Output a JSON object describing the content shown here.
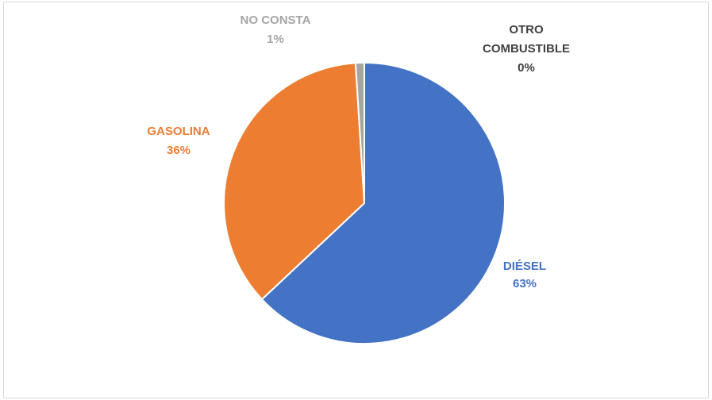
{
  "chart_data": {
    "type": "pie",
    "title": "",
    "slices": [
      {
        "label": "DIÉSEL",
        "value": 63,
        "value_label": "63%",
        "color": "#4472C4",
        "label_color": "#4472C4"
      },
      {
        "label": "GASOLINA",
        "value": 36,
        "value_label": "36%",
        "color": "#ED7D31",
        "label_color": "#ED7D31"
      },
      {
        "label": "NO CONSTA",
        "value": 1,
        "value_label": "1%",
        "color": "#A5A5A5",
        "label_color": "#A5A5A5"
      },
      {
        "label": "OTRO COMBUSTIBLE",
        "label_lines": [
          "OTRO",
          "COMBUSTIBLE"
        ],
        "value": 0,
        "value_label": "0%",
        "color": "#404040",
        "label_color": "#404040"
      }
    ],
    "legend": "none"
  }
}
